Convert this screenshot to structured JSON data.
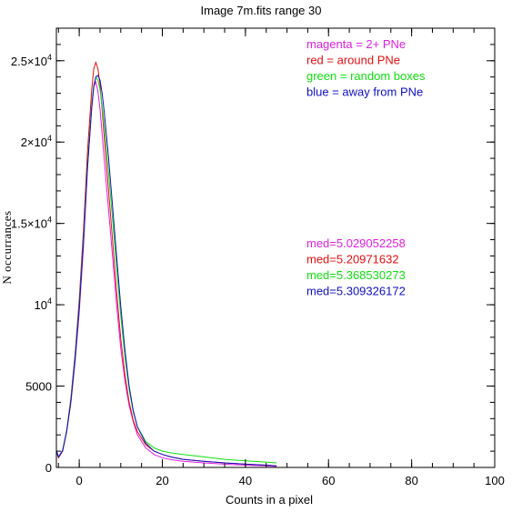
{
  "chart_data": {
    "type": "line",
    "title": "Image 7m.fits   range 30",
    "xlabel": "Counts in a pixel",
    "ylabel": "N occurrances",
    "xlim": [
      -5.5,
      100
    ],
    "ylim": [
      0,
      27000
    ],
    "x_ticks": [
      {
        "value": 0,
        "label": "0"
      },
      {
        "value": 20,
        "label": "20"
      },
      {
        "value": 40,
        "label": "40"
      },
      {
        "value": 60,
        "label": "60"
      },
      {
        "value": 80,
        "label": "80"
      },
      {
        "value": 100,
        "label": "100"
      }
    ],
    "x_minor_step": 5,
    "y_ticks": [
      {
        "value": 0,
        "label": "0",
        "exp": ""
      },
      {
        "value": 5000,
        "label": "5000",
        "exp": ""
      },
      {
        "value": 10000,
        "label": "10",
        "exp": "4"
      },
      {
        "value": 15000,
        "label": "1.5×10",
        "exp": "4"
      },
      {
        "value": 20000,
        "label": "2×10",
        "exp": "4"
      },
      {
        "value": 25000,
        "label": "2.5×10",
        "exp": "4"
      }
    ],
    "y_minor_step": 1000,
    "grid": false,
    "legend": [
      {
        "text": "magenta = 2+ PNe",
        "color": "#e020e0"
      },
      {
        "text": "red = around PNe",
        "color": "#e01010"
      },
      {
        "text": "green = random boxes",
        "color": "#10e010"
      },
      {
        "text": "blue = away from PNe",
        "color": "#1010c0"
      }
    ],
    "medians": [
      {
        "text": "med=5.029052258",
        "color": "#e020e0"
      },
      {
        "text": "med=5.20971632",
        "color": "#e01010"
      },
      {
        "text": "med=5.368530273",
        "color": "#10e010"
      },
      {
        "text": "med=5.309326172",
        "color": "#1010c0"
      }
    ],
    "axis_color": "#000000",
    "series": [
      {
        "color": "#e020e0",
        "x": [
          -5.5,
          -5,
          -4,
          -3,
          -2,
          -1,
          0,
          1,
          2,
          3,
          3.5,
          4,
          4.5,
          5,
          5.5,
          6,
          7,
          8,
          9,
          10,
          11,
          12,
          13,
          14,
          16,
          18,
          20,
          22,
          25,
          30,
          35,
          40,
          45,
          47.5
        ],
        "y": [
          1000,
          600,
          1000,
          2200,
          4000,
          6500,
          9500,
          13500,
          18500,
          22000,
          23400,
          23700,
          23100,
          22000,
          20500,
          19000,
          16000,
          13000,
          10000,
          7300,
          5300,
          3800,
          2800,
          2000,
          1200,
          800,
          600,
          480,
          380,
          280,
          200,
          140,
          100,
          60
        ]
      },
      {
        "color": "#e01010",
        "x": [
          -5.5,
          -5,
          -4,
          -3,
          -2,
          -1,
          0,
          1,
          2,
          3,
          3.5,
          4,
          4.5,
          5,
          5.5,
          6,
          7,
          8,
          9,
          10,
          11,
          12,
          13,
          14,
          16,
          18,
          20,
          22,
          25,
          30,
          35,
          40,
          45,
          47.5
        ],
        "y": [
          1000,
          600,
          1000,
          2300,
          4300,
          7000,
          10300,
          14500,
          19500,
          23200,
          24500,
          24900,
          24500,
          23500,
          22000,
          20400,
          17200,
          14000,
          10800,
          7900,
          5700,
          4000,
          2900,
          2200,
          1400,
          1000,
          800,
          650,
          500,
          380,
          280,
          200,
          140,
          90
        ]
      },
      {
        "color": "#10e010",
        "x": [
          -5.5,
          -5,
          -4,
          -3,
          -2,
          -1,
          0,
          1,
          2,
          3,
          3.5,
          4,
          4.5,
          5,
          5.5,
          6,
          7,
          8,
          9,
          10,
          11,
          12,
          13,
          14,
          16,
          18,
          20,
          22,
          25,
          30,
          35,
          40,
          45,
          47.5
        ],
        "y": [
          1050,
          650,
          1050,
          2300,
          4200,
          6900,
          10000,
          14000,
          18700,
          22300,
          23500,
          24000,
          23800,
          23200,
          22200,
          21000,
          18300,
          15300,
          12300,
          9300,
          6800,
          4800,
          3400,
          2500,
          1600,
          1200,
          1000,
          900,
          800,
          650,
          500,
          400,
          330,
          280
        ]
      },
      {
        "color": "#1010c0",
        "x": [
          -5.5,
          -5,
          -4,
          -3,
          -2,
          -1,
          0,
          1,
          2,
          3,
          3.5,
          4,
          4.5,
          5,
          5.5,
          6,
          7,
          8,
          9,
          10,
          11,
          12,
          13,
          14,
          16,
          18,
          20,
          22,
          25,
          30,
          35,
          40,
          45,
          47.5
        ],
        "y": [
          1050,
          650,
          1050,
          2250,
          4100,
          6700,
          9800,
          13800,
          18500,
          22100,
          23400,
          24000,
          24100,
          23800,
          23000,
          21900,
          19200,
          16100,
          13000,
          9900,
          7200,
          5000,
          3500,
          2500,
          1500,
          1000,
          800,
          650,
          500,
          380,
          280,
          200,
          140,
          100
        ]
      }
    ]
  }
}
